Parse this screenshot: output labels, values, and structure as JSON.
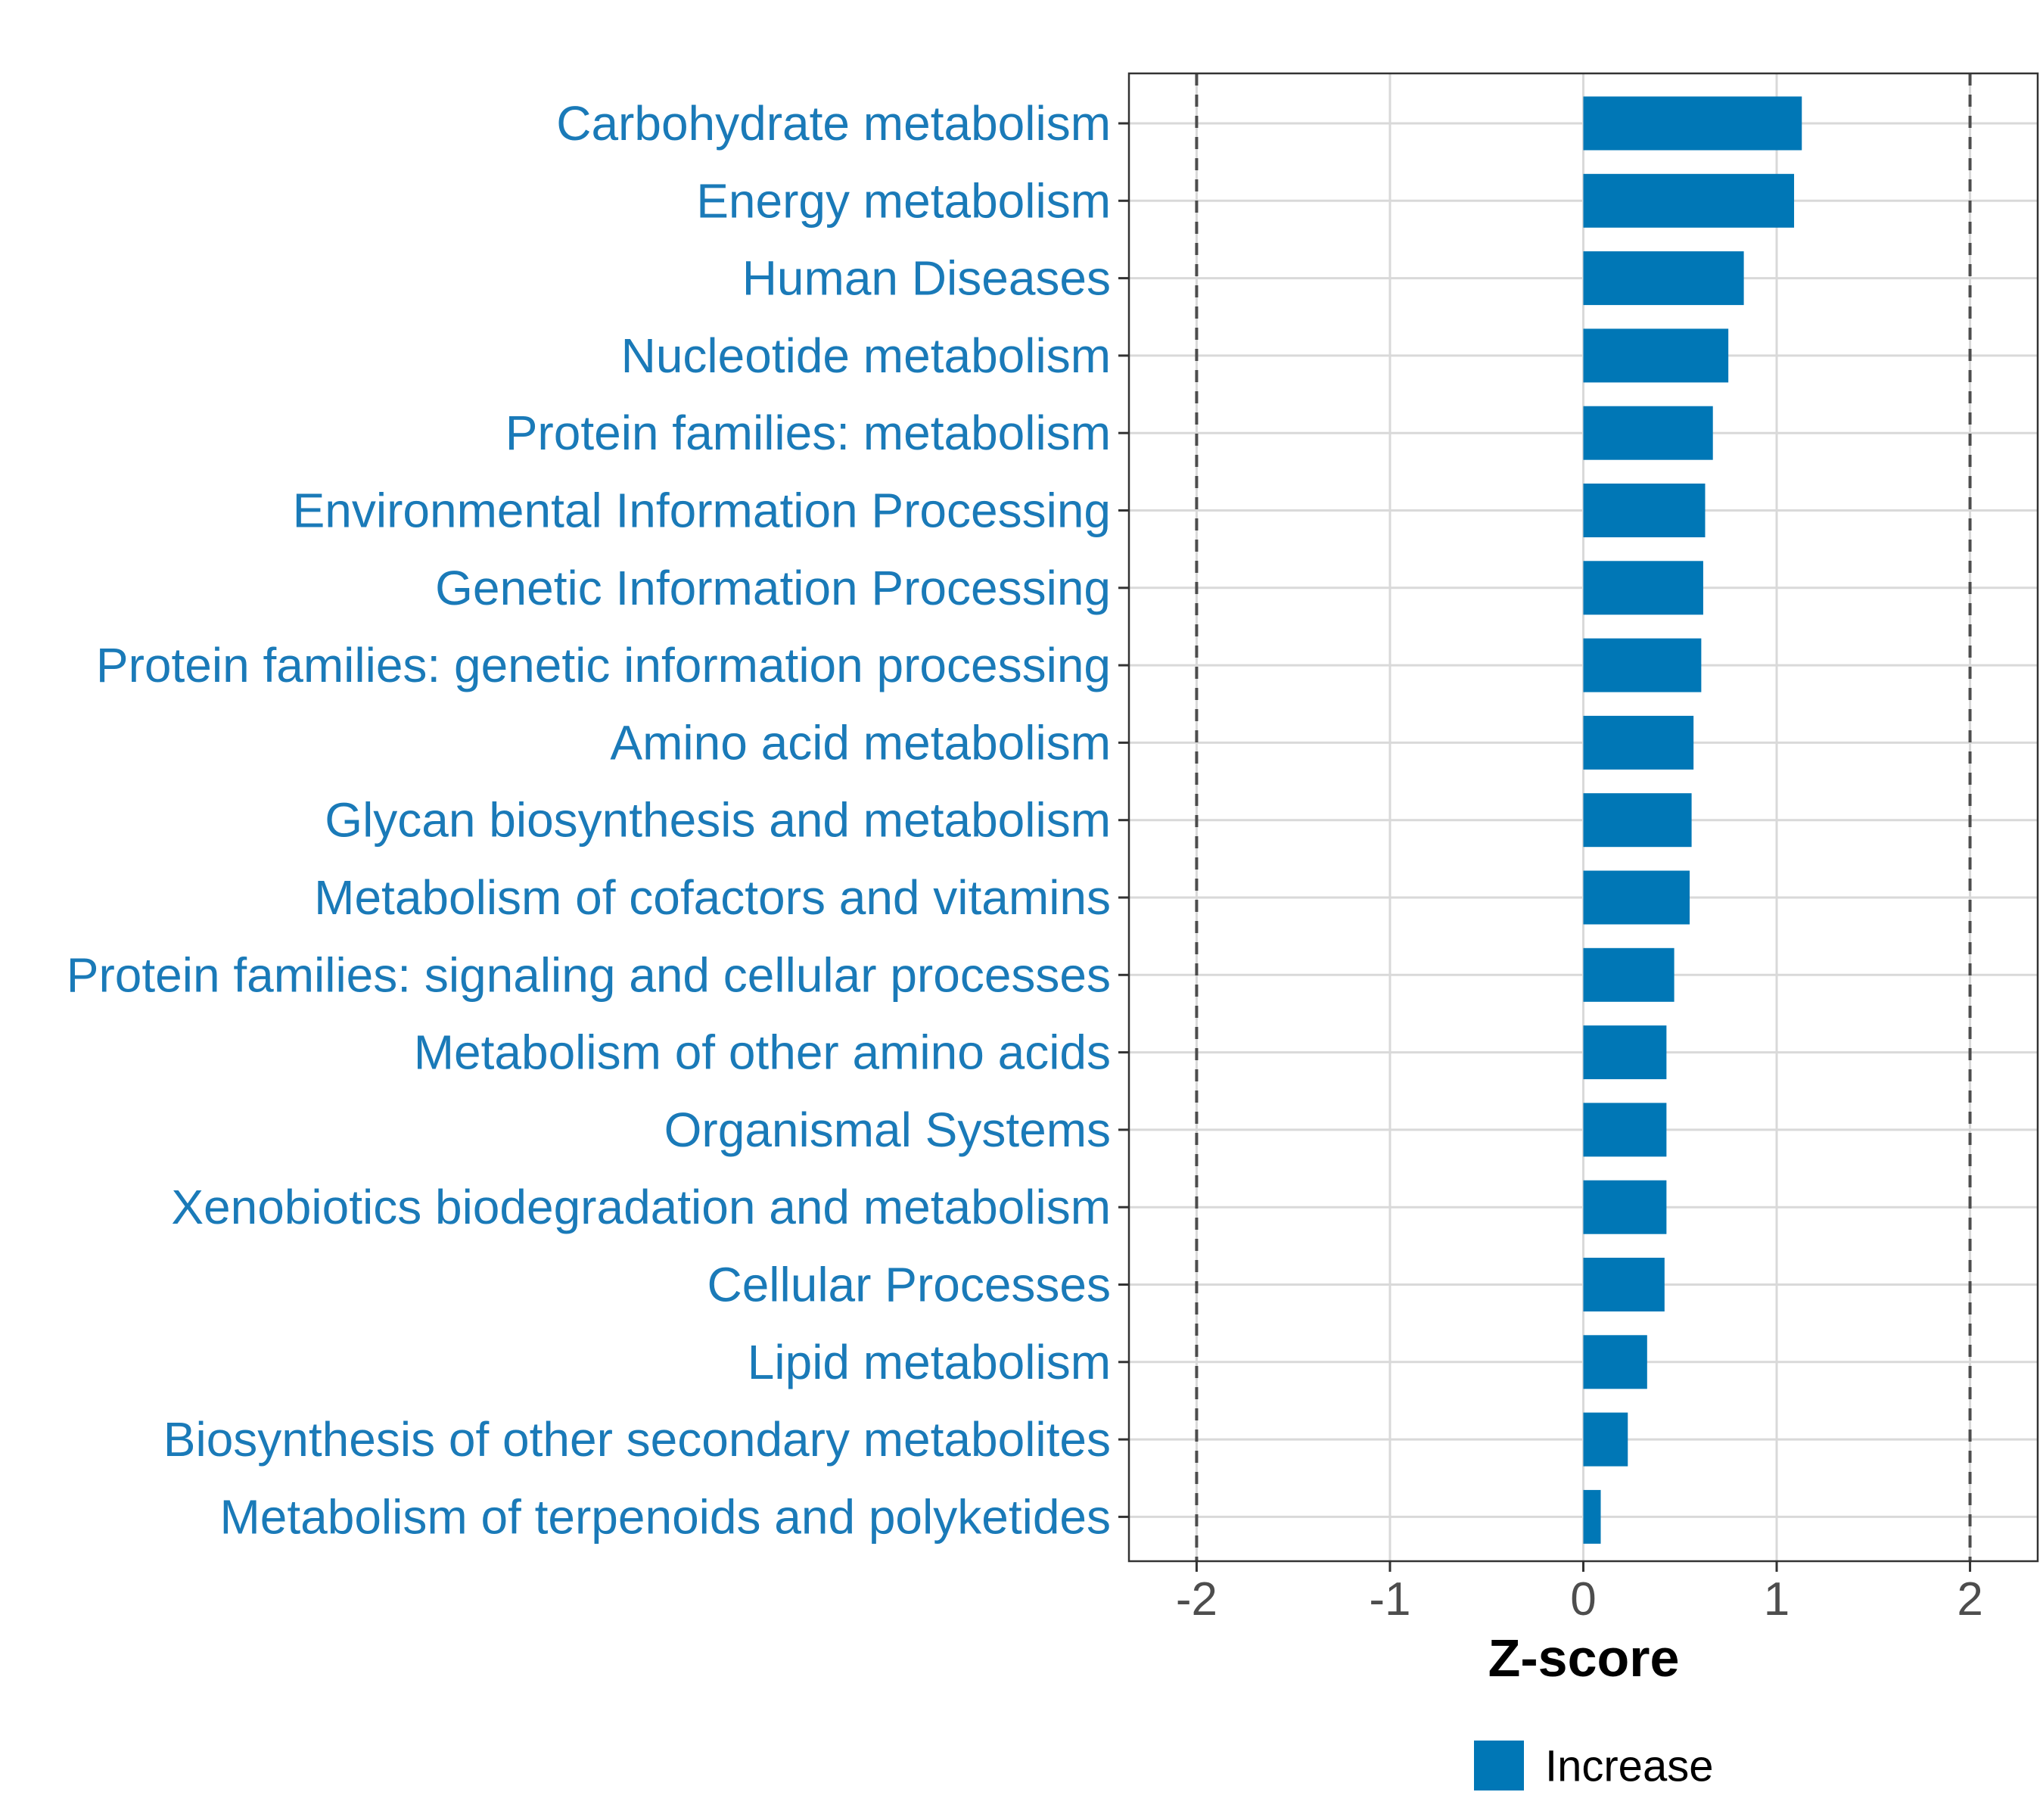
{
  "chart_data": {
    "type": "bar",
    "orientation": "horizontal",
    "categories": [
      "Carbohydrate metabolism",
      "Energy metabolism",
      "Human Diseases",
      "Nucleotide metabolism",
      "Protein families: metabolism",
      "Environmental Information Processing",
      "Genetic Information Processing",
      "Protein families: genetic information processing",
      "Amino acid metabolism",
      "Glycan biosynthesis and metabolism",
      "Metabolism of cofactors and vitamins",
      "Protein families: signaling and cellular processes",
      "Metabolism of other amino acids",
      "Organismal Systems",
      "Xenobiotics biodegradation and metabolism",
      "Cellular Processes",
      "Lipid metabolism",
      "Biosynthesis of other secondary metabolites",
      "Metabolism of terpenoids and polyketides"
    ],
    "values": [
      1.13,
      1.09,
      0.83,
      0.75,
      0.67,
      0.63,
      0.62,
      0.61,
      0.57,
      0.56,
      0.55,
      0.47,
      0.43,
      0.43,
      0.43,
      0.42,
      0.33,
      0.23,
      0.09
    ],
    "series": [
      {
        "name": "Increase",
        "color": "#0077b6"
      }
    ],
    "title": "",
    "xlabel": "Z-score",
    "ylabel": "",
    "xlim": [
      -2.35,
      2.35
    ],
    "xticks": [
      -2,
      -1,
      0,
      1,
      2
    ],
    "xtick_labels": [
      "-2",
      "-1",
      "0",
      "1",
      "2"
    ],
    "reference_lines": [
      -2,
      2
    ],
    "grid": true,
    "legend": {
      "position": "bottom",
      "entries": [
        "Increase"
      ]
    },
    "label_color": "#1a7ab8"
  }
}
